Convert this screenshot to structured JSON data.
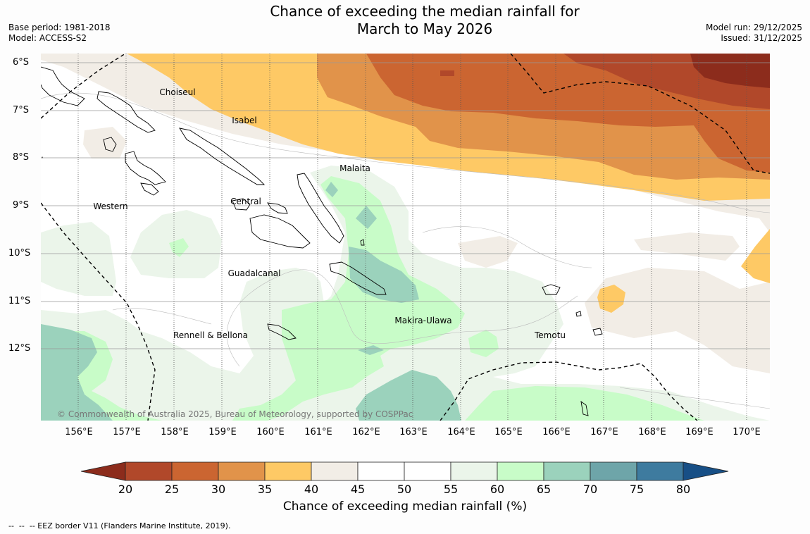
{
  "title_line1": "Chance of exceeding the median rainfall for",
  "title_line2": "March to May 2026",
  "base_period": "Base period: 1981-2018",
  "model": "Model: ACCESS-S2",
  "model_run": "Model run: 29/12/2025",
  "issued": "Issued: 31/12/2025",
  "lat_labels": [
    "6°S",
    "7°S",
    "8°S",
    "9°S",
    "10°S",
    "11°S",
    "12°S"
  ],
  "lon_labels": [
    "156°E",
    "157°E",
    "158°E",
    "159°E",
    "160°E",
    "161°E",
    "162°E",
    "163°E",
    "164°E",
    "165°E",
    "166°E",
    "167°E",
    "168°E",
    "169°E",
    "170°E"
  ],
  "provinces": [
    "Choiseul",
    "Isabel",
    "Malaita",
    "Western",
    "Central",
    "Guadalcanal",
    "Makira-Ulawa",
    "Rennell & Bellona",
    "Temotu"
  ],
  "copyright": "© Commonwealth of Australia 2025, Bureau of Meteorology, supported by COSPPac",
  "colorbar": {
    "ticks": [
      "20",
      "25",
      "30",
      "35",
      "40",
      "45",
      "50",
      "55",
      "60",
      "65",
      "70",
      "75",
      "80"
    ],
    "colors": [
      "#8c2c1c",
      "#b1482a",
      "#cb6531",
      "#e1934a",
      "#fec965",
      "#f2ede6",
      "#ffffff",
      "#ffffff",
      "#ebf5ea",
      "#c8fcc8",
      "#9bd2bc",
      "#6ea5a9",
      "#3e7b9f",
      "#174f86"
    ],
    "label": "Chance of exceeding median rainfall (%)"
  },
  "legend_note": "--  --  -- EEZ border V11 (Flanders Marine Institute, 2019).",
  "colors": {
    "p20": "#8c2c1c",
    "p25": "#b1482a",
    "p30": "#cb6531",
    "p35": "#e1934a",
    "p40": "#fec965",
    "p45": "#f2ede6",
    "p50": "#ffffff",
    "p60": "#ebf5ea",
    "p65": "#c8fcc8",
    "p70": "#9bd2bc",
    "p75": "#6ea5a9",
    "p80": "#3e7b9f",
    "p85": "#174f86"
  }
}
